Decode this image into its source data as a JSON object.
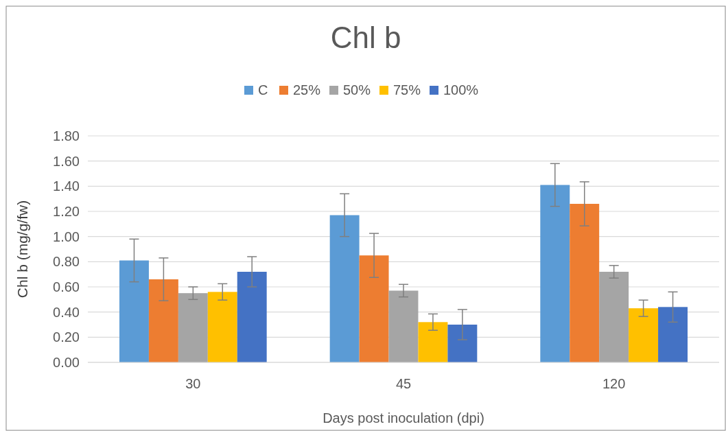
{
  "chart_data": {
    "type": "bar",
    "title": "Chl b",
    "xlabel": "Days post inoculation (dpi)",
    "ylabel": "Chl b (mg/g/fw)",
    "categories": [
      "30",
      "45",
      "120"
    ],
    "series": [
      {
        "name": "C",
        "color": "#5b9bd5",
        "values": [
          0.81,
          1.17,
          1.41
        ],
        "errors": [
          0.17,
          0.17,
          0.17
        ]
      },
      {
        "name": "25%",
        "color": "#ed7d31",
        "values": [
          0.66,
          0.85,
          1.26
        ],
        "errors": [
          0.17,
          0.175,
          0.175
        ]
      },
      {
        "name": "50%",
        "color": "#a5a5a5",
        "values": [
          0.55,
          0.57,
          0.72
        ],
        "errors": [
          0.05,
          0.05,
          0.05
        ]
      },
      {
        "name": "75%",
        "color": "#ffc000",
        "values": [
          0.56,
          0.32,
          0.43
        ],
        "errors": [
          0.065,
          0.065,
          0.065
        ]
      },
      {
        "name": "100%",
        "color": "#4472c4",
        "values": [
          0.72,
          0.3,
          0.44
        ],
        "errors": [
          0.12,
          0.12,
          0.12
        ]
      }
    ],
    "ylim": [
      0,
      1.8
    ],
    "yticks": [
      {
        "value": 0,
        "label": "0.00"
      },
      {
        "value": 0.2,
        "label": "0.20"
      },
      {
        "value": 0.4,
        "label": "0.40"
      },
      {
        "value": 0.6,
        "label": "0.60"
      },
      {
        "value": 0.8,
        "label": "0.80"
      },
      {
        "value": 1,
        "label": "1.00"
      },
      {
        "value": 1.2,
        "label": "1.20"
      },
      {
        "value": 1.4,
        "label": "1.40"
      },
      {
        "value": 1.6,
        "label": "1.60"
      },
      {
        "value": 1.8,
        "label": "1.80"
      }
    ],
    "grid": "y",
    "legend": "top"
  }
}
